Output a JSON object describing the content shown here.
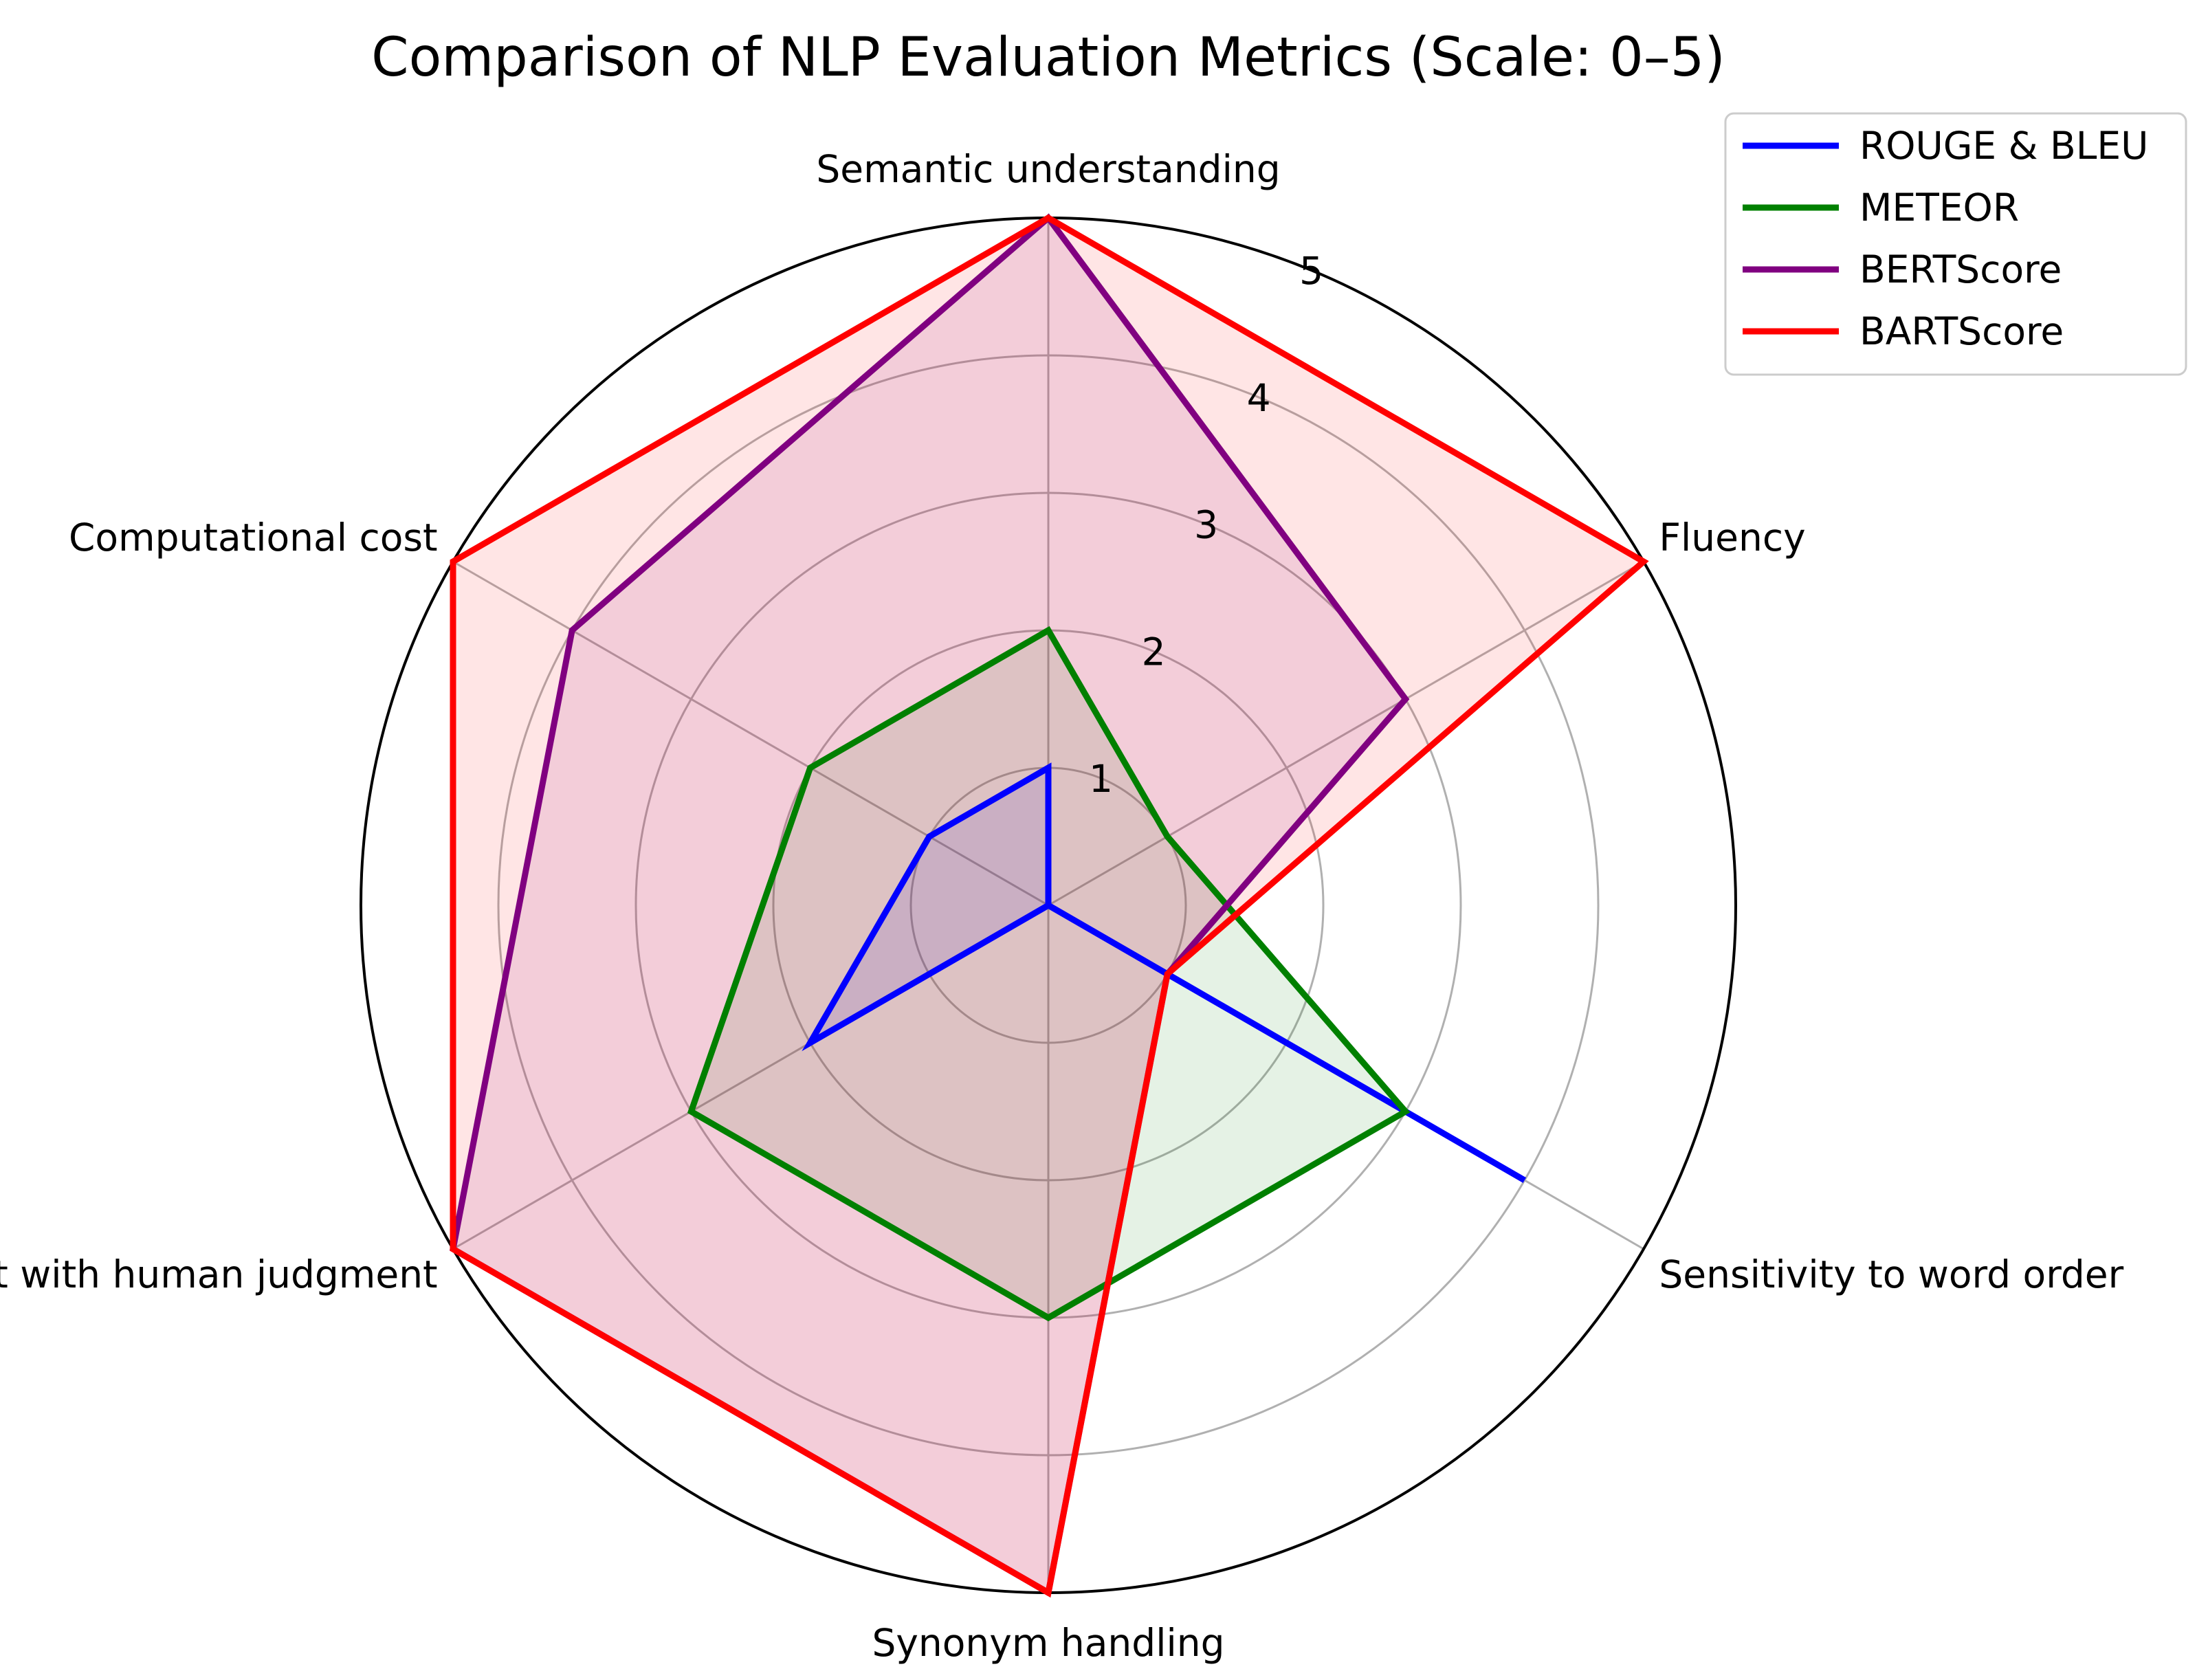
{
  "chart_data": {
    "type": "radar",
    "title": "Comparison of NLP Evaluation Metrics (Scale: 0–5)",
    "axes": [
      "Semantic understanding",
      "Fluency",
      "Sensitivity to word order",
      "Synonym handling",
      "Alignment with human judgment",
      "Computational cost"
    ],
    "rlim": [
      0,
      5
    ],
    "rticks": [
      "1",
      "2",
      "3",
      "4",
      "5"
    ],
    "rtick_values": [
      1,
      2,
      3,
      4,
      5
    ],
    "grid": true,
    "legend_position": "top-right",
    "series": [
      {
        "name": "ROUGE & BLEU",
        "color": "#0000ff",
        "values": [
          1,
          0,
          4,
          0,
          2,
          1
        ],
        "fill_opacity": 0.1
      },
      {
        "name": "METEOR",
        "color": "#008000",
        "values": [
          2,
          1,
          3,
          3,
          3,
          2
        ],
        "fill_opacity": 0.1
      },
      {
        "name": "BERTScore",
        "color": "#800080",
        "values": [
          5,
          3,
          1,
          5,
          5,
          4
        ],
        "fill_opacity": 0.1
      },
      {
        "name": "BARTScore",
        "color": "#ff0000",
        "values": [
          5,
          5,
          1,
          5,
          5,
          5
        ],
        "fill_opacity": 0.1
      }
    ]
  }
}
